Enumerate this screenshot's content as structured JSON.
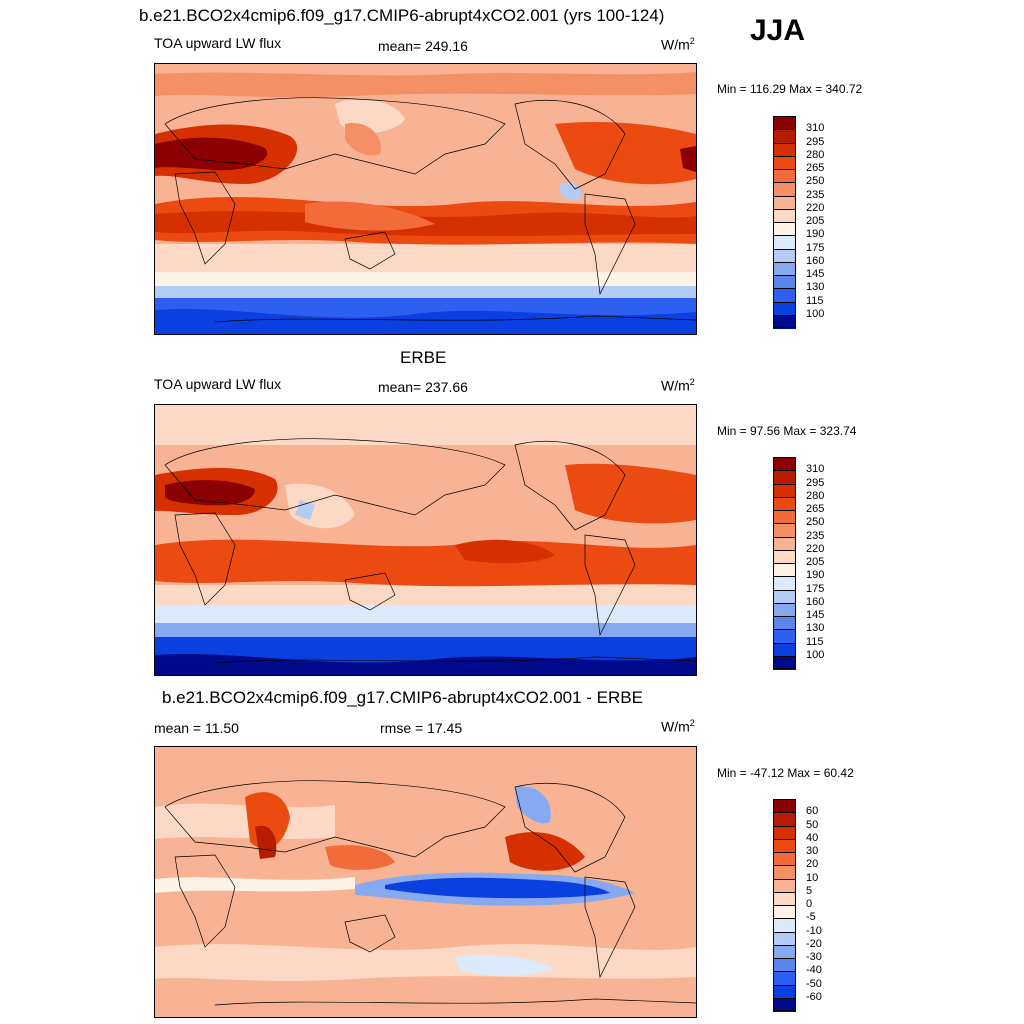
{
  "season": "JJA",
  "chart_data": [
    {
      "type": "heatmap",
      "title": "b.e21.BCO2x4cmip6.f09_g17.CMIP6-abrupt4xCO2.001 (yrs 100-124)",
      "left_label": "TOA upward LW flux",
      "center_label": "mean= 249.16",
      "units": "W/m",
      "units_sup": "2",
      "minmax": "Min = 116.29 Max = 340.72",
      "mean": 249.16,
      "min": 116.29,
      "max": 340.72,
      "colorbar_levels": [
        "310",
        "295",
        "280",
        "265",
        "250",
        "235",
        "220",
        "205",
        "190",
        "175",
        "160",
        "145",
        "130",
        "115",
        "100"
      ],
      "colors": [
        "#8b0000",
        "#b81c00",
        "#d63000",
        "#eb4b10",
        "#f26b3a",
        "#f58f66",
        "#f8b395",
        "#fbd9c4",
        "#fff2e6",
        "#dce9fb",
        "#b3cbf5",
        "#86a9f0",
        "#5a86ec",
        "#2d5ff0",
        "#0a3fe0",
        "#000a8c"
      ],
      "xlabel": "",
      "ylabel": ""
    },
    {
      "type": "heatmap",
      "title": "ERBE",
      "left_label": "TOA upward LW flux",
      "center_label": "mean= 237.66",
      "units": "W/m",
      "units_sup": "2",
      "minmax": "Min =  97.56 Max = 323.74",
      "mean": 237.66,
      "min": 97.56,
      "max": 323.74,
      "colorbar_levels": [
        "310",
        "295",
        "280",
        "265",
        "250",
        "235",
        "220",
        "205",
        "190",
        "175",
        "160",
        "145",
        "130",
        "115",
        "100"
      ],
      "colors": [
        "#8b0000",
        "#b81c00",
        "#d63000",
        "#eb4b10",
        "#f26b3a",
        "#f58f66",
        "#f8b395",
        "#fbd9c4",
        "#fff2e6",
        "#dce9fb",
        "#b3cbf5",
        "#86a9f0",
        "#5a86ec",
        "#2d5ff0",
        "#0a3fe0",
        "#000a8c"
      ],
      "xlabel": "",
      "ylabel": ""
    },
    {
      "type": "heatmap",
      "title": "b.e21.BCO2x4cmip6.f09_g17.CMIP6-abrupt4xCO2.001 - ERBE",
      "left_label": "mean =  11.50",
      "center_label": "rmse =  17.45",
      "units": "W/m",
      "units_sup": "2",
      "minmax": "Min = -47.12 Max =  60.42",
      "mean": 11.5,
      "rmse": 17.45,
      "min": -47.12,
      "max": 60.42,
      "colorbar_levels": [
        "60",
        "50",
        "40",
        "30",
        "20",
        "10",
        "5",
        "0",
        "-5",
        "-10",
        "-20",
        "-30",
        "-40",
        "-50",
        "-60"
      ],
      "colors": [
        "#8b0000",
        "#b81c00",
        "#d63000",
        "#eb4b10",
        "#f26b3a",
        "#f58f66",
        "#f8b395",
        "#fbd9c4",
        "#fff2e6",
        "#dce9fb",
        "#b3cbf5",
        "#86a9f0",
        "#5a86ec",
        "#2d5ff0",
        "#0a3fe0",
        "#000a8c"
      ],
      "xlabel": "",
      "ylabel": ""
    }
  ]
}
